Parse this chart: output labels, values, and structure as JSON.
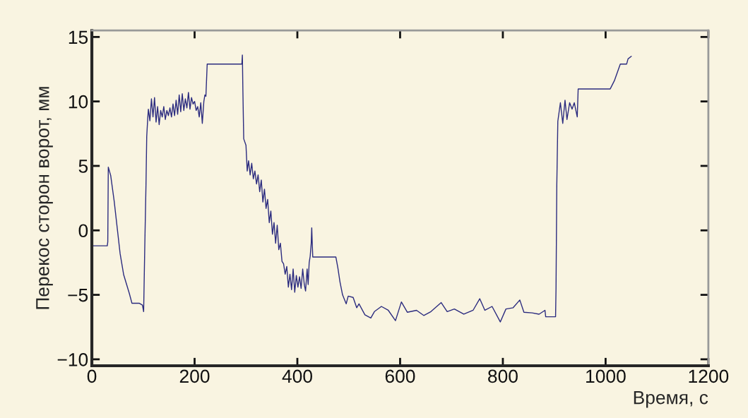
{
  "chart_data": {
    "type": "line",
    "xlabel": "Время, с",
    "ylabel": "Перекос сторон ворот, мм",
    "xlim": [
      0,
      1200
    ],
    "ylim": [
      -10.5,
      15.5
    ],
    "xticks": [
      0,
      200,
      400,
      600,
      800,
      1000,
      1200
    ],
    "yticks": [
      -10,
      -5,
      0,
      5,
      10,
      15
    ],
    "grid": false,
    "marker": "none",
    "line_style": "solid",
    "series": [
      {
        "color": "#2b2b7f",
        "x": [
          0,
          30,
          31,
          32,
          36.7,
          43.5,
          55,
          62,
          73,
          78,
          92,
          98.5,
          100.8,
          103,
          105.4,
          106.8,
          108.7,
          110,
          113,
          116,
          119,
          122,
          125,
          128,
          131,
          134,
          137,
          140,
          143,
          146,
          149,
          152,
          155,
          158,
          161,
          164,
          167,
          170,
          173,
          176,
          179,
          182,
          185,
          188,
          191,
          194,
          197,
          200,
          203,
          206,
          209,
          212,
          215,
          218,
          220,
          222,
          224.5,
          292,
          293,
          294,
          295.6,
          300,
          302.4,
          305,
          308.1,
          311.2,
          314.3,
          317.4,
          320.5,
          323.6,
          326.7,
          329.8,
          332.9,
          336,
          339.1,
          342.2,
          345.3,
          348.4,
          351.5,
          354.6,
          357.7,
          360.8,
          363.9,
          367,
          370.1,
          373.2,
          376.3,
          379.4,
          382.5,
          385.6,
          388.7,
          391.8,
          394.9,
          398,
          401.1,
          404.2,
          407.3,
          410.4,
          413.5,
          416,
          419,
          421,
          423,
          425,
          427,
          428,
          429,
          430,
          475,
          478.8,
          483,
          488,
          495,
          499,
          508.6,
          515.5,
          520,
          531.5,
          543,
          550,
          563.6,
          577,
          591,
          602.5,
          614,
          632,
          646,
          660,
          680,
          691.6,
          705.6,
          724,
          742,
          755,
          765,
          779,
          795,
          806,
          820,
          833,
          841,
          857,
          870.5,
          882,
          883.4,
          902.6,
          903.5,
          905,
          907,
          912,
          916.6,
          921,
          924.8,
          930,
          934.7,
          939,
          944.8,
          946.6,
          1009,
          1017,
          1028.6,
          1041,
          1043.7,
          1050
        ],
        "values": [
          -1.2,
          -1.2,
          -0.9,
          4.9,
          4.25,
          2.25,
          -1.8,
          -3.45,
          -4.9,
          -5.65,
          -5.65,
          -5.8,
          -6.3,
          -1.3,
          3.6,
          7.27,
          8.64,
          9.4,
          8.5,
          10.2,
          8.8,
          10.3,
          8.4,
          9.6,
          8.2,
          9.3,
          8.8,
          9.6,
          8.6,
          9.3,
          8.9,
          9.5,
          8.8,
          9.8,
          8.9,
          10.1,
          9.0,
          10.5,
          9.2,
          10.6,
          9.3,
          10.2,
          9.5,
          10.7,
          9.4,
          10.3,
          9.8,
          10.0,
          9.3,
          9.6,
          8.8,
          9.9,
          8.3,
          10.0,
          10.5,
          10.4,
          12.9,
          12.9,
          13.6,
          10.8,
          7.1,
          6.6,
          4.6,
          5.4,
          4.3,
          5.2,
          4.0,
          4.6,
          3.6,
          4.3,
          3.0,
          3.9,
          2.2,
          3.2,
          1.7,
          2.4,
          0.6,
          1.5,
          -0.3,
          0.6,
          -1.0,
          0.4,
          -1.5,
          -1.0,
          -2.4,
          -2.6,
          -3.4,
          -2.8,
          -4.4,
          -3.4,
          -4.6,
          -3.0,
          -4.8,
          -3.5,
          -4.4,
          -3.6,
          -4.5,
          -3.0,
          -4.2,
          -4.7,
          -3.0,
          -4.2,
          -2.5,
          -2.0,
          -1.0,
          0.2,
          -1.0,
          -2.07,
          -2.07,
          -2.9,
          -4.0,
          -5.0,
          -5.7,
          -5.1,
          -5.2,
          -6.0,
          -5.7,
          -6.55,
          -6.8,
          -6.3,
          -5.9,
          -6.2,
          -7.0,
          -5.55,
          -6.35,
          -6.2,
          -6.6,
          -6.3,
          -5.6,
          -6.3,
          -6.1,
          -6.5,
          -6.2,
          -5.3,
          -6.2,
          -5.9,
          -7.1,
          -6.1,
          -6.0,
          -5.4,
          -6.35,
          -6.4,
          -6.5,
          -6.2,
          -6.7,
          -6.7,
          -4.5,
          3.5,
          8.46,
          9.9,
          8.3,
          10.1,
          8.6,
          9.9,
          9.4,
          9.9,
          8.8,
          10.97,
          10.97,
          11.6,
          12.9,
          12.9,
          13.3,
          13.5
        ]
      }
    ]
  }
}
